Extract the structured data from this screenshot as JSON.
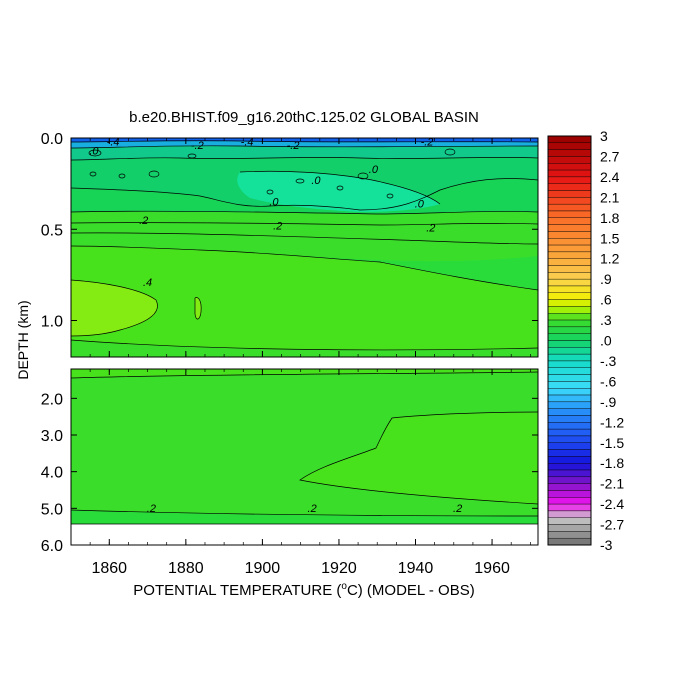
{
  "chart_data": {
    "type": "heatmap",
    "title": "b.e20.BHIST.f09_g16.20thC.125.02 GLOBAL BASIN",
    "xlabel_prefix": "POTENTIAL TEMPERATURE (",
    "xlabel_degree": "o",
    "xlabel_suffix": "C) (MODEL - OBS)",
    "ylabel": "DEPTH (km)",
    "x_ticks": [
      "1860",
      "1880",
      "1900",
      "1920",
      "1940",
      "1960"
    ],
    "x_tick_values": [
      1860,
      1880,
      1900,
      1920,
      1940,
      1960
    ],
    "xlim": [
      1850,
      1972
    ],
    "upper_panel": {
      "ylim": [
        0.0,
        1.2
      ],
      "y_ticks": [
        "0.0",
        "0.5",
        "1.0"
      ],
      "y_tick_values": [
        0.0,
        0.5,
        1.0
      ]
    },
    "lower_panel": {
      "ylim": [
        1.2,
        6.0
      ],
      "y_ticks": [
        "2.0",
        "3.0",
        "4.0",
        "5.0",
        "6.0"
      ],
      "y_tick_values": [
        2.0,
        3.0,
        4.0,
        5.0,
        6.0
      ]
    },
    "colorbar": {
      "labels": [
        "3",
        "2.7",
        "2.4",
        "2.1",
        "1.8",
        "1.5",
        "1.2",
        ".9",
        ".6",
        ".3",
        ".0",
        "-.3",
        "-.6",
        "-.9",
        "-1.2",
        "-1.5",
        "-1.8",
        "-2.1",
        "-2.4",
        "-2.7",
        "-3"
      ],
      "range": [
        -3,
        3
      ],
      "step": 0.1
    },
    "contour_labels": [
      {
        "text": "-.4",
        "x": 1861,
        "y": 0.03
      },
      {
        "text": "-.2",
        "x": 1883,
        "y": 0.05
      },
      {
        "text": "-.4",
        "x": 1896,
        "y": 0.03
      },
      {
        "text": "-.2",
        "x": 1908,
        "y": 0.05
      },
      {
        "text": "-.2",
        "x": 1943,
        "y": 0.03
      },
      {
        "text": ".0",
        "x": 1856,
        "y": 0.08
      },
      {
        "text": ".0",
        "x": 1929,
        "y": 0.18
      },
      {
        "text": ".0",
        "x": 1914,
        "y": 0.24
      },
      {
        "text": ".0",
        "x": 1903,
        "y": 0.36
      },
      {
        "text": ".0",
        "x": 1941,
        "y": 0.37
      },
      {
        "text": ".2",
        "x": 1869,
        "y": 0.46
      },
      {
        "text": ".2",
        "x": 1904,
        "y": 0.49
      },
      {
        "text": ".2",
        "x": 1944,
        "y": 0.5
      },
      {
        "text": ".4",
        "x": 1870,
        "y": 0.8
      },
      {
        "text": ".2",
        "x": 1871,
        "y": 5.05
      },
      {
        "text": ".2",
        "x": 1913,
        "y": 5.05
      },
      {
        "text": ".2",
        "x": 1951,
        "y": 5.05
      }
    ]
  }
}
